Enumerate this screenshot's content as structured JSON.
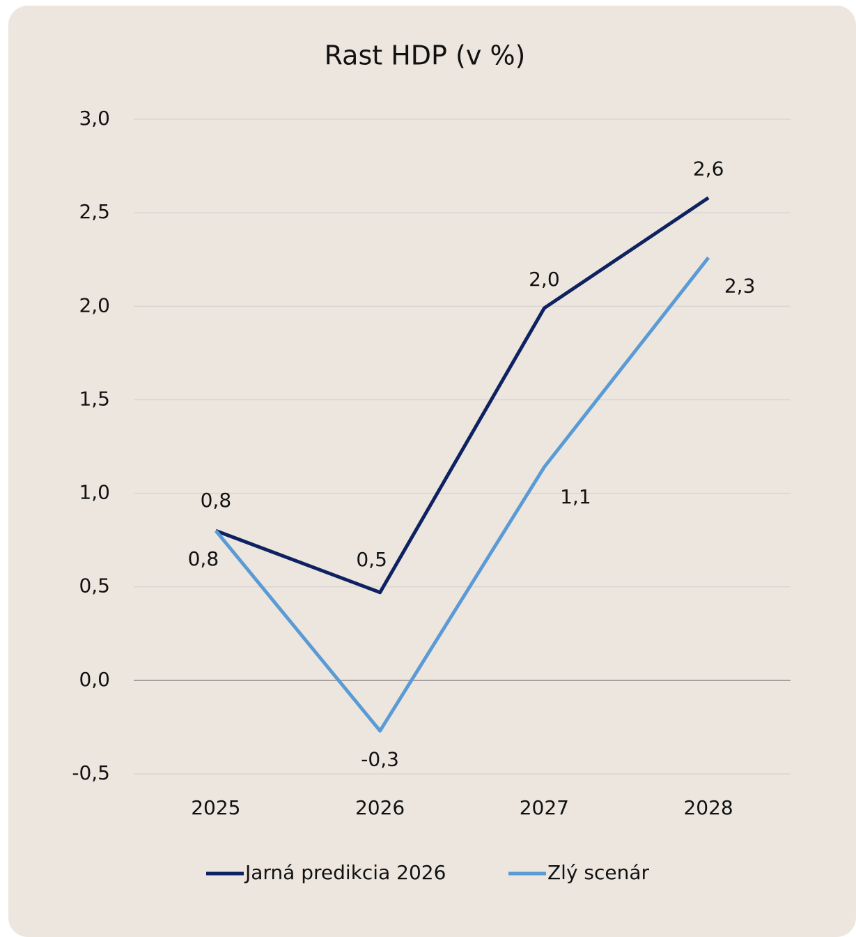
{
  "chart_data": {
    "type": "line",
    "title": "Rast HDP (v %)",
    "categories": [
      "2025",
      "2026",
      "2027",
      "2028"
    ],
    "series": [
      {
        "name": "Jarná predikcia 2026",
        "color": "#0e2160",
        "values": [
          0.8,
          0.47,
          1.99,
          2.58
        ],
        "value_labels": [
          "0,8",
          "0,5",
          "2,0",
          "2,6"
        ]
      },
      {
        "name": "Zlý scenár",
        "color": "#5b9bd5",
        "values": [
          0.8,
          -0.27,
          1.14,
          2.26
        ],
        "value_labels": [
          "0,8",
          "-0,3",
          "1,1",
          "2,3"
        ]
      }
    ],
    "ylim": [
      -0.5,
      3
    ],
    "yticks": [
      {
        "value": -0.5,
        "label": "-0,5"
      },
      {
        "value": 0,
        "label": "0,0"
      },
      {
        "value": 0.5,
        "label": "0,5"
      },
      {
        "value": 1,
        "label": "1,0"
      },
      {
        "value": 1.5,
        "label": "1,5"
      },
      {
        "value": 2,
        "label": "2,0"
      },
      {
        "value": 2.5,
        "label": "2,5"
      },
      {
        "value": 3,
        "label": "3,0"
      }
    ],
    "grid": true,
    "legend": "bottom"
  }
}
